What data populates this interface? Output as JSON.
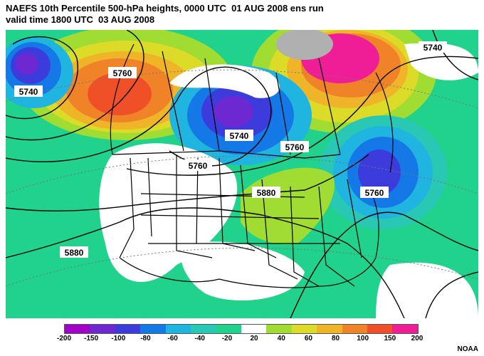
{
  "title_line1": "NAEFS 10th Percentile 500-hPa heights, 0000 UTC  01 AUG 2008 ens run",
  "title_line2": "valid time 1800 UTC  03 AUG 2008",
  "contour_labels": [
    "5740",
    "5760",
    "5740",
    "5740",
    "5760",
    "5760",
    "5880",
    "5760",
    "5880",
    "5740"
  ],
  "legend": {
    "colors": [
      "#a000c8",
      "#6e28d2",
      "#3c3cdc",
      "#1478e6",
      "#20b4e0",
      "#28c8b4",
      "#20d28c",
      "#ffffff",
      "#a0dc32",
      "#dcdc28",
      "#f0b428",
      "#f08228",
      "#f05028",
      "#f01e96"
    ],
    "labels": [
      "-200",
      "-150",
      "-100",
      "-80",
      "-60",
      "-40",
      "-20",
      "20",
      "40",
      "60",
      "80",
      "100",
      "150",
      "200"
    ]
  },
  "credit": "NOAA"
}
